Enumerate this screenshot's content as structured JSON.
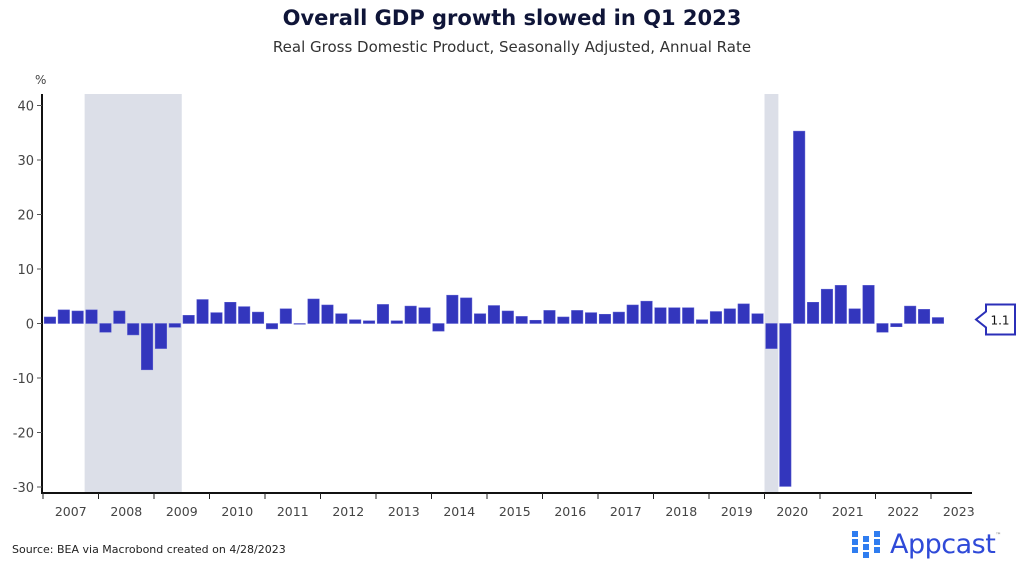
{
  "footer": {
    "source": "Source: BEA via Macrobond created on 4/28/2023",
    "logo_text": "Appcast",
    "logo_tm": "™",
    "logo_icon": "grid-dots-icon"
  },
  "chart_data": {
    "type": "bar",
    "title": "Overall GDP growth slowed in Q1 2023",
    "subtitle": "Real Gross Domestic Product, Seasonally Adjusted, Annual Rate",
    "xlabel": "",
    "ylabel": "%",
    "ylim": [
      -31,
      42
    ],
    "yticks": [
      40,
      30,
      20,
      10,
      0,
      -10,
      -20,
      -30
    ],
    "xlim": [
      2007.0,
      2023.75
    ],
    "xtick_labels": [
      "2007",
      "2008",
      "2009",
      "2010",
      "2011",
      "2012",
      "2013",
      "2014",
      "2015",
      "2016",
      "2017",
      "2018",
      "2019",
      "2020",
      "2021",
      "2022",
      "2023"
    ],
    "grid": false,
    "bar_color": "#3336bd",
    "recession_color": "#dcdfe8",
    "recessions": [
      {
        "start": "2007Q4",
        "end": "2009Q2",
        "start_x": 2007.75,
        "end_x": 2009.5
      },
      {
        "start": "2020Q1",
        "end": "2020Q1",
        "start_x": 2020.0,
        "end_x": 2020.25
      }
    ],
    "last_value_label": "1.1",
    "categories": [
      "2007Q1",
      "2007Q2",
      "2007Q3",
      "2007Q4",
      "2008Q1",
      "2008Q2",
      "2008Q3",
      "2008Q4",
      "2009Q1",
      "2009Q2",
      "2009Q3",
      "2009Q4",
      "2010Q1",
      "2010Q2",
      "2010Q3",
      "2010Q4",
      "2011Q1",
      "2011Q2",
      "2011Q3",
      "2011Q4",
      "2012Q1",
      "2012Q2",
      "2012Q3",
      "2012Q4",
      "2013Q1",
      "2013Q2",
      "2013Q3",
      "2013Q4",
      "2014Q1",
      "2014Q2",
      "2014Q3",
      "2014Q4",
      "2015Q1",
      "2015Q2",
      "2015Q3",
      "2015Q4",
      "2016Q1",
      "2016Q2",
      "2016Q3",
      "2016Q4",
      "2017Q1",
      "2017Q2",
      "2017Q3",
      "2017Q4",
      "2018Q1",
      "2018Q2",
      "2018Q3",
      "2018Q4",
      "2019Q1",
      "2019Q2",
      "2019Q3",
      "2019Q4",
      "2020Q1",
      "2020Q2",
      "2020Q3",
      "2020Q4",
      "2021Q1",
      "2021Q2",
      "2021Q3",
      "2021Q4",
      "2022Q1",
      "2022Q2",
      "2022Q3",
      "2022Q4",
      "2023Q1"
    ],
    "values": [
      1.2,
      2.5,
      2.3,
      2.5,
      -1.6,
      2.3,
      -2.1,
      -8.5,
      -4.6,
      -0.7,
      1.5,
      4.4,
      2.0,
      3.9,
      3.1,
      2.1,
      -1.0,
      2.7,
      -0.1,
      4.5,
      3.4,
      1.8,
      0.7,
      0.5,
      3.5,
      0.5,
      3.2,
      2.9,
      -1.4,
      5.2,
      4.7,
      1.8,
      3.3,
      2.3,
      1.3,
      0.6,
      2.4,
      1.2,
      2.4,
      2.0,
      1.7,
      2.1,
      3.4,
      4.1,
      2.9,
      2.9,
      2.9,
      0.7,
      2.2,
      2.7,
      3.6,
      1.8,
      -4.6,
      -29.9,
      35.3,
      3.9,
      6.3,
      7.0,
      2.7,
      7.0,
      -1.6,
      -0.6,
      3.2,
      2.6,
      1.1
    ]
  }
}
